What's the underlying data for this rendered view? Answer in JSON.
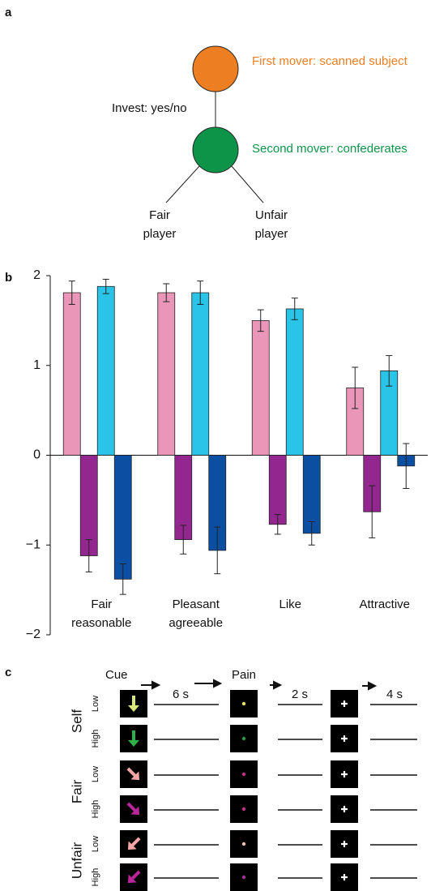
{
  "panel_labels": {
    "a": "a",
    "b": "b",
    "c": "c"
  },
  "panel_a": {
    "first_mover": "First mover: scanned subject",
    "invest": "Invest: yes/no",
    "second_mover": "Second mover: confederates",
    "fair_player": "Fair\nplayer",
    "unfair_player": "Unfair\nplayer"
  },
  "chart_data": {
    "type": "bar",
    "categories": [
      "Fair\nreasonable",
      "Pleasant\nagreeable",
      "Like",
      "Attractive"
    ],
    "series": [
      {
        "color": "#e996b8",
        "values": [
          1.81,
          1.81,
          1.5,
          0.75
        ],
        "errors": [
          0.13,
          0.1,
          0.12,
          0.23
        ]
      },
      {
        "color": "#93278f",
        "values": [
          -1.12,
          -0.94,
          -0.77,
          -0.63
        ],
        "errors": [
          0.18,
          0.16,
          0.11,
          0.29
        ]
      },
      {
        "color": "#29c4e8",
        "values": [
          1.88,
          1.81,
          1.63,
          0.94
        ],
        "errors": [
          0.08,
          0.13,
          0.12,
          0.17
        ]
      },
      {
        "color": "#0b4fa3",
        "values": [
          -1.38,
          -1.06,
          -0.87,
          -0.12
        ],
        "errors": [
          0.17,
          0.26,
          0.13,
          0.25
        ]
      }
    ],
    "ylim": [
      -2,
      2
    ],
    "yticks": [
      {
        "value": -2,
        "label": "−2"
      },
      {
        "value": -1,
        "label": "−1"
      },
      0,
      1,
      2
    ]
  },
  "panel_c": {
    "cue": "Cue",
    "pain": "Pain",
    "d1": "6 s",
    "d2": "2 s",
    "d3": "4 s",
    "groups": [
      "Self",
      "Fair",
      "Unfair"
    ],
    "levels": [
      "Low",
      "High",
      "Low",
      "High",
      "Low",
      "High"
    ]
  }
}
